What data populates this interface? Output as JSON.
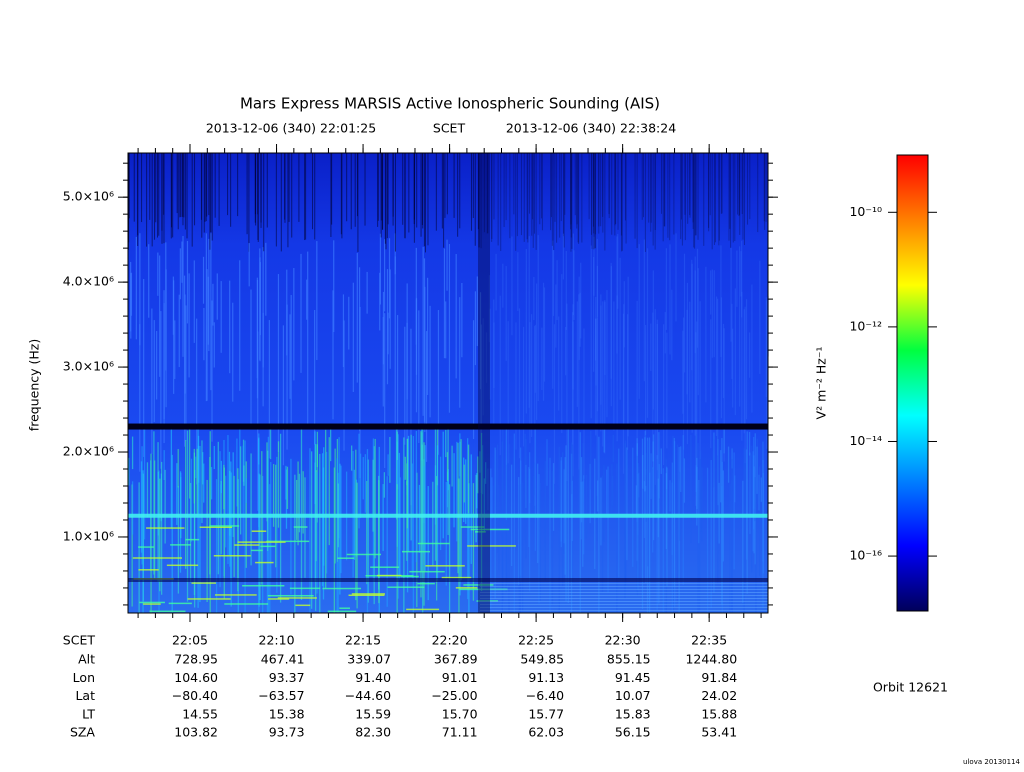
{
  "chart_data": {
    "type": "spectrogram",
    "title": "Mars Express MARSIS Active Ionospheric Sounding (AIS)",
    "time_range": {
      "start": "2013-12-06 (340) 22:01:25",
      "label": "SCET",
      "end": "2013-12-06 (340) 22:38:24"
    },
    "y_label": "frequency (Hz)",
    "ylim": [
      105000,
      5520000
    ],
    "yticks": [
      {
        "value": 1000000,
        "label": "1.0×10⁶"
      },
      {
        "value": 2000000,
        "label": "2.0×10⁶"
      },
      {
        "value": 3000000,
        "label": "3.0×10⁶"
      },
      {
        "value": 4000000,
        "label": "4.0×10⁶"
      },
      {
        "value": 5000000,
        "label": "5.0×10⁶"
      }
    ],
    "xticks": [
      "22:05",
      "22:10",
      "22:15",
      "22:20",
      "22:25",
      "22:30",
      "22:35"
    ],
    "colorbar": {
      "label": "V² m⁻² Hz⁻¹",
      "log_scale": true,
      "zlim": [
        1.1e-17,
        1e-09
      ],
      "ticks": [
        {
          "value": 1e-16,
          "label": "10⁻¹⁶"
        },
        {
          "value": 1e-14,
          "label": "10⁻¹⁴"
        },
        {
          "value": 1e-12,
          "label": "10⁻¹²"
        },
        {
          "value": 1e-10,
          "label": "10⁻¹⁰"
        }
      ],
      "colormap": [
        "#00005a",
        "#0000ff",
        "#0080ff",
        "#00ffff",
        "#00ff40",
        "#ffff00",
        "#ff8000",
        "#ff0000"
      ]
    },
    "ephemeris": {
      "header": "SCET",
      "rows": [
        {
          "name": "Alt",
          "values": [
            "728.95",
            "467.41",
            "339.07",
            "367.89",
            "549.85",
            "855.15",
            "1244.80"
          ]
        },
        {
          "name": "Lon",
          "values": [
            "104.60",
            "93.37",
            "91.40",
            "91.01",
            "91.13",
            "91.45",
            "91.84"
          ]
        },
        {
          "name": "Lat",
          "values": [
            "−80.40",
            "−63.57",
            "−44.60",
            "−25.00",
            "−6.40",
            "10.07",
            "24.02"
          ]
        },
        {
          "name": "LT",
          "values": [
            "14.55",
            "15.38",
            "15.59",
            "15.70",
            "15.77",
            "15.83",
            "15.88"
          ]
        },
        {
          "name": "SZA",
          "values": [
            "103.82",
            "93.73",
            "82.30",
            "71.11",
            "62.03",
            "56.15",
            "53.41"
          ]
        }
      ]
    },
    "orbit": "Orbit 12621",
    "footer": "ulova 20130114"
  }
}
